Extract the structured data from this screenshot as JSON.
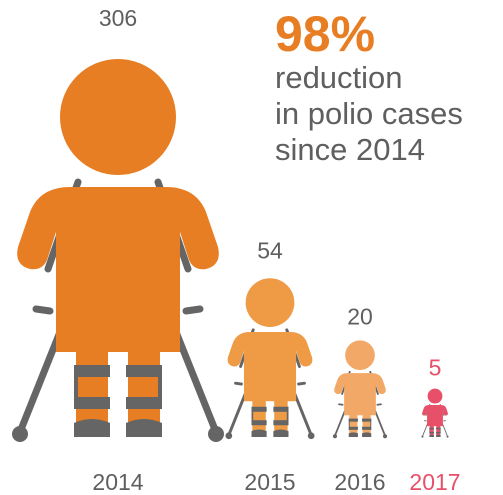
{
  "headline": {
    "stat": "98%",
    "lines": [
      "reduction",
      "in polio cases",
      "since 2014"
    ]
  },
  "colors": {
    "orange": "#e87e23",
    "orange_light": "#ef9a45",
    "orange_lighter": "#f2a866",
    "red": "#e8506a",
    "crutch": "#656565",
    "text": "#5f5f5f"
  },
  "chart_data": {
    "type": "bar",
    "categories": [
      "2014",
      "2015",
      "2016",
      "2017"
    ],
    "values": [
      306,
      54,
      20,
      5
    ],
    "title": "98% reduction in polio cases since 2014",
    "highlight_category": "2017"
  }
}
